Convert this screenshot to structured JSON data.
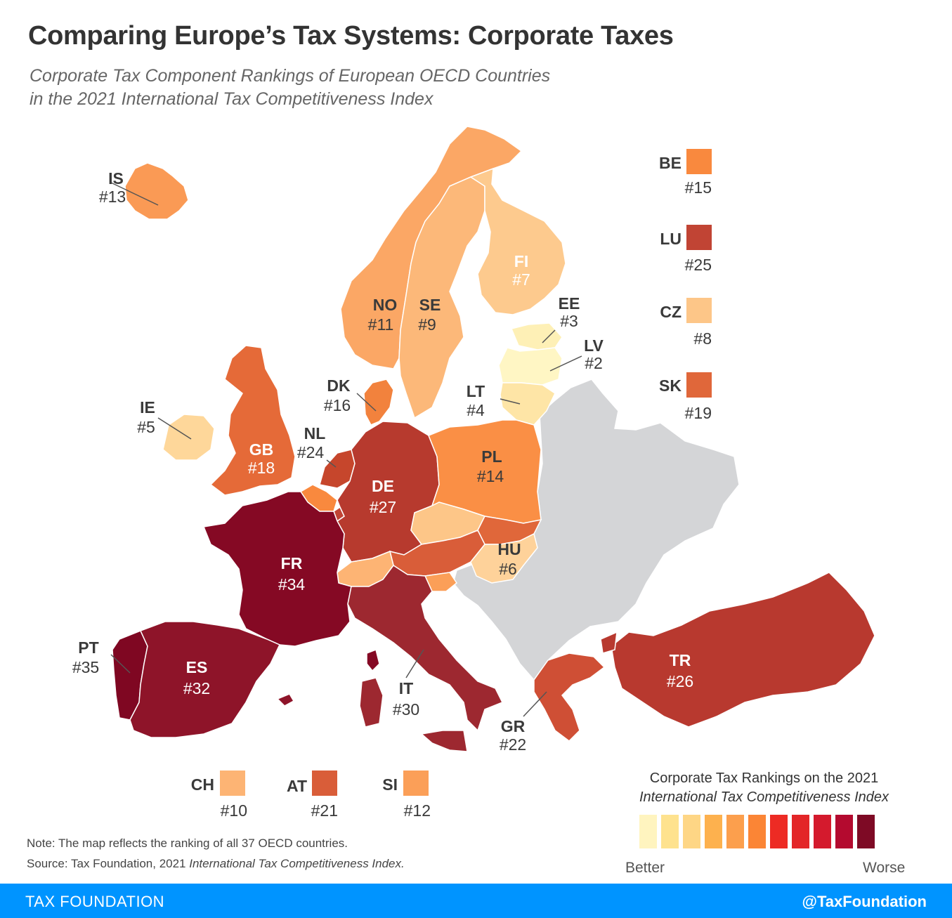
{
  "title": "Comparing Europe’s Tax Systems: Corporate Taxes",
  "subtitle_line1": "Corporate Tax Component Rankings of European OECD Countries",
  "subtitle_line2": "in the 2021 International Tax Competitiveness Index",
  "countries": {
    "IS": {
      "code": "IS",
      "rank": "#13",
      "color": "#fa9a55"
    },
    "NO": {
      "code": "NO",
      "rank": "#11",
      "color": "#fba765"
    },
    "SE": {
      "code": "SE",
      "rank": "#9",
      "color": "#fcb879"
    },
    "FI": {
      "code": "FI",
      "rank": "#7",
      "color": "#fdca8e"
    },
    "EE": {
      "code": "EE",
      "rank": "#3",
      "color": "#fef0b6"
    },
    "LV": {
      "code": "LV",
      "rank": "#2",
      "color": "#fff6c4"
    },
    "LT": {
      "code": "LT",
      "rank": "#4",
      "color": "#fee5a6"
    },
    "DK": {
      "code": "DK",
      "rank": "#16",
      "color": "#f2823d"
    },
    "IE": {
      "code": "IE",
      "rank": "#5",
      "color": "#fed79a"
    },
    "GB": {
      "code": "GB",
      "rank": "#18",
      "color": "#e56a38"
    },
    "NL": {
      "code": "NL",
      "rank": "#24",
      "color": "#c6462c"
    },
    "DE": {
      "code": "DE",
      "rank": "#27",
      "color": "#b73a2e"
    },
    "PL": {
      "code": "PL",
      "rank": "#14",
      "color": "#fa8f45"
    },
    "CZ": {
      "code": "CZ",
      "rank": "#8",
      "color": "#fdc688"
    },
    "SK": {
      "code": "SK",
      "rank": "#19",
      "color": "#e0673a"
    },
    "HU": {
      "code": "HU",
      "rank": "#6",
      "color": "#fed29a"
    },
    "AT": {
      "code": "AT",
      "rank": "#21",
      "color": "#d95d39"
    },
    "CH": {
      "code": "CH",
      "rank": "#10",
      "color": "#fdb474"
    },
    "SI": {
      "code": "SI",
      "rank": "#12",
      "color": "#fb9f58"
    },
    "FR": {
      "code": "FR",
      "rank": "#34",
      "color": "#850924"
    },
    "BE": {
      "code": "BE",
      "rank": "#15",
      "color": "#f9893e"
    },
    "LU": {
      "code": "LU",
      "rank": "#25",
      "color": "#c14434"
    },
    "PT": {
      "code": "PT",
      "rank": "#35",
      "color": "#7f0722"
    },
    "ES": {
      "code": "ES",
      "rank": "#32",
      "color": "#8e1429"
    },
    "IT": {
      "code": "IT",
      "rank": "#30",
      "color": "#9d2830"
    },
    "GR": {
      "code": "GR",
      "rank": "#22",
      "color": "#cf4f35"
    },
    "TR": {
      "code": "TR",
      "rank": "#26",
      "color": "#b8392f"
    }
  },
  "non_oecd_color": "#d4d5d7",
  "border_color": "#ffffff",
  "legend": {
    "title_line1": "Corporate Tax Rankings on the 2021",
    "title_line2": "International Tax Competitiveness Index",
    "colors": [
      "#fff4bf",
      "#fee28e",
      "#fed685",
      "#fdb14e",
      "#fc9f4d",
      "#fb8535",
      "#ed2b24",
      "#e32628",
      "#d41a2d",
      "#b40a2f",
      "#7e0a25"
    ],
    "better_label": "Better",
    "worse_label": "Worse"
  },
  "note": "Note: The map reflects the ranking of all 37 OECD countries.",
  "source_prefix": "Source: Tax Foundation, 2021 ",
  "source_italic": "International Tax Competitiveness Index.",
  "footer": {
    "brand": "TAX FOUNDATION",
    "handle": "@TaxFoundation"
  }
}
